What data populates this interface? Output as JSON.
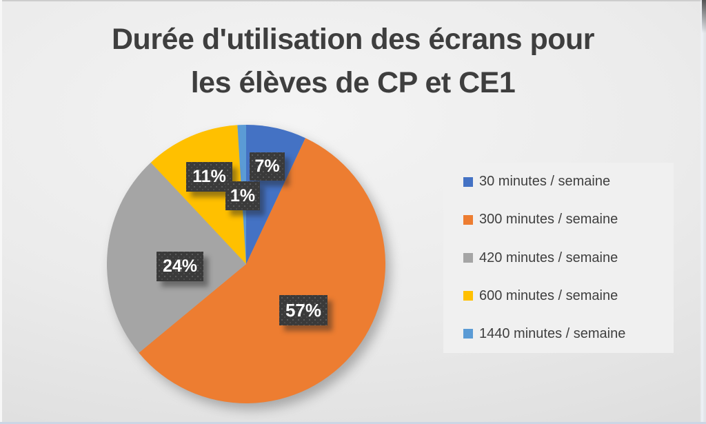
{
  "slide": {
    "title_line1": "Durée d'utilisation des écrans pour",
    "title_line2": "les élèves de CP et CE1"
  },
  "chart_data": {
    "type": "pie",
    "title": "Durée d'utilisation des écrans pour les élèves de CP et CE1",
    "categories": [
      "30 minutes / semaine",
      "300 minutes / semaine",
      "420 minutes / semaine",
      "600 minutes / semaine",
      "1440 minutes / semaine"
    ],
    "values": [
      7,
      57,
      24,
      11,
      1
    ],
    "unit": "%",
    "colors": [
      "#4472C4",
      "#ED7D31",
      "#A5A5A5",
      "#FFC000",
      "#5B9BD5"
    ],
    "data_labels": [
      "7%",
      "57%",
      "24%",
      "11%",
      "1%"
    ],
    "legend_position": "right",
    "start_angle_deg": 0,
    "direction": "clockwise",
    "label_text_color": "#FFFFFF",
    "label_box_color": "#3A3A3A"
  },
  "legend": {
    "items": [
      {
        "label": "30 minutes / semaine",
        "color": "#4472C4"
      },
      {
        "label": "300 minutes / semaine",
        "color": "#ED7D31"
      },
      {
        "label": "420 minutes / semaine",
        "color": "#A5A5A5"
      },
      {
        "label": "600 minutes / semaine",
        "color": "#FFC000"
      },
      {
        "label": "1440 minutes / semaine",
        "color": "#5B9BD5"
      }
    ]
  }
}
